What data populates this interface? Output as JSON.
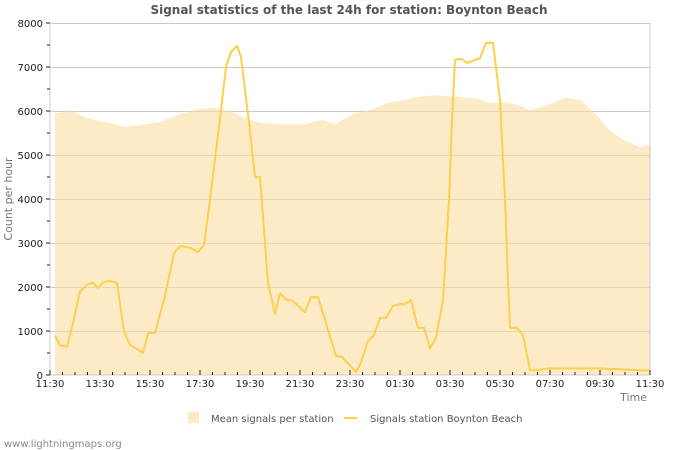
{
  "chart_data": {
    "type": "area+line",
    "title": "Signal statistics of the last 24h for station: Boynton Beach",
    "xlabel": "Time",
    "ylabel": "Count per hour",
    "ylim": [
      0,
      8000
    ],
    "yticks": [
      0,
      1000,
      2000,
      3000,
      4000,
      5000,
      6000,
      7000,
      8000
    ],
    "xticks": [
      "11:30",
      "13:30",
      "15:30",
      "17:30",
      "19:30",
      "21:30",
      "23:30",
      "01:30",
      "03:30",
      "05:30",
      "07:30",
      "09:30",
      "11:30"
    ],
    "x_unit": "hours since 11:30",
    "grid": true,
    "legend_position": "bottom",
    "series": [
      {
        "name": "Mean signals per station",
        "style": "area",
        "color": "#fdebc8",
        "t": [
          0.2,
          0.9,
          1.4,
          2.0,
          2.6,
          3.0,
          3.6,
          4.4,
          5.2,
          6.0,
          6.6,
          7.2,
          7.8,
          8.4,
          9.2,
          10.2,
          10.9,
          11.4,
          12.0,
          12.2,
          12.8,
          13.6,
          14.2,
          14.7,
          15.4,
          16.4,
          17.2,
          17.6,
          18.2,
          18.7,
          19.2,
          20.0,
          20.6,
          21.2,
          21.8,
          22.4,
          23.0,
          23.6,
          24.0
        ],
        "values": [
          5950,
          6000,
          5860,
          5770,
          5700,
          5640,
          5680,
          5750,
          5930,
          6050,
          6070,
          6000,
          5840,
          5730,
          5700,
          5700,
          5800,
          5700,
          5890,
          5950,
          6020,
          6200,
          6250,
          6320,
          6360,
          6320,
          6270,
          6180,
          6200,
          6140,
          6020,
          6160,
          6300,
          6250,
          5950,
          5550,
          5320,
          5180,
          5230
        ]
      },
      {
        "name": "Signals station Boynton Beach",
        "style": "line",
        "color": "#fdcf4a",
        "t": [
          0.2,
          0.4,
          0.68,
          0.92,
          1.2,
          1.48,
          1.72,
          1.92,
          2.12,
          2.36,
          2.68,
          2.96,
          3.2,
          3.48,
          3.72,
          3.92,
          4.2,
          4.6,
          4.96,
          5.2,
          5.6,
          5.92,
          6.16,
          6.4,
          6.52,
          6.76,
          7.04,
          7.24,
          7.48,
          7.64,
          7.96,
          8.2,
          8.4,
          8.72,
          9.0,
          9.2,
          9.48,
          9.68,
          10.2,
          10.44,
          10.72,
          11.44,
          11.68,
          12.24,
          12.4,
          12.72,
          12.96,
          13.2,
          13.44,
          13.72,
          14.0,
          14.2,
          14.44,
          14.72,
          14.96,
          15.2,
          15.44,
          15.72,
          15.96,
          16.08,
          16.2,
          16.32,
          16.48,
          16.68,
          17.2,
          17.44,
          17.72,
          18.0,
          18.2,
          18.32,
          18.4,
          18.52,
          18.68,
          18.92,
          19.2,
          19.48,
          19.72,
          19.92,
          20.2,
          21.0,
          21.6,
          22.0,
          24.0
        ],
        "values": [
          890,
          680,
          640,
          1180,
          1900,
          2050,
          2100,
          1980,
          2100,
          2140,
          2090,
          1000,
          680,
          590,
          500,
          950,
          960,
          1800,
          2770,
          2930,
          2890,
          2800,
          2950,
          3980,
          4550,
          5640,
          7000,
          7340,
          7480,
          7230,
          5730,
          4500,
          4500,
          2090,
          1390,
          1860,
          1700,
          1700,
          1430,
          1770,
          1770,
          430,
          410,
          70,
          230,
          770,
          910,
          1300,
          1300,
          1570,
          1610,
          1610,
          1700,
          1070,
          1070,
          610,
          840,
          1700,
          3980,
          5800,
          7160,
          7180,
          7180,
          7090,
          7200,
          7550,
          7550,
          6250,
          3980,
          2160,
          1070,
          1070,
          1070,
          910,
          110,
          110,
          130,
          150,
          150,
          150,
          150,
          150,
          100
        ]
      }
    ]
  },
  "legend": {
    "items": [
      {
        "label": "Mean signals per station"
      },
      {
        "label": "Signals station Boynton Beach"
      }
    ]
  },
  "footer": {
    "source": "www.lightningmaps.org"
  }
}
